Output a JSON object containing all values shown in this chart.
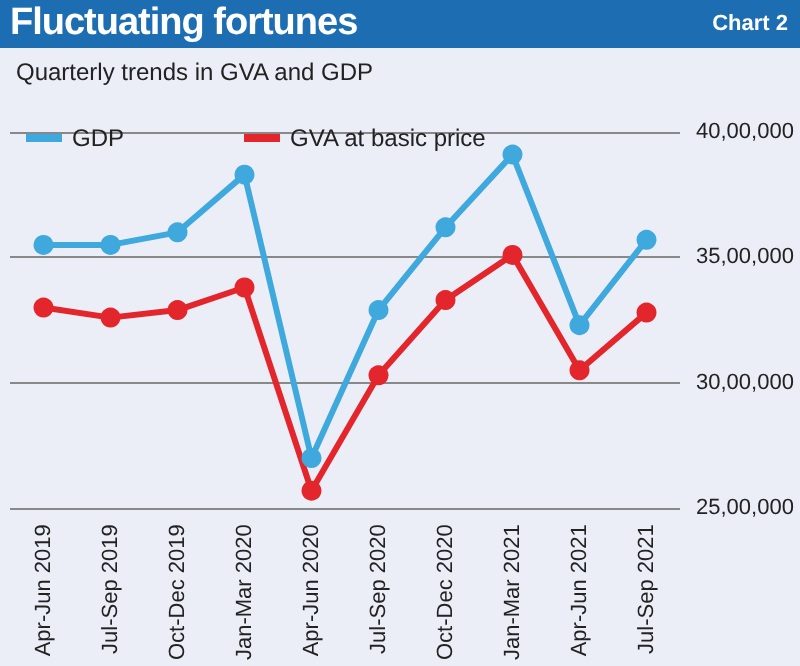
{
  "chart_data": {
    "type": "line",
    "title": "Fluctuating fortunes",
    "subtitle": "Quarterly trends in GVA and GDP",
    "annotations": [
      "Chart 2"
    ],
    "categories": [
      "Apr-Jun 2019",
      "Jul-Sep 2019",
      "Oct-Dec 2019",
      "Jan-Mar 2020",
      "Apr-Jun 2020",
      "Jul-Sep 2020",
      "Oct-Dec 2020",
      "Jan-Mar 2021",
      "Apr-Jun 2021",
      "Jul-Sep 2021"
    ],
    "series": [
      {
        "name": "GDP",
        "color": "#3fa9dd",
        "values": [
          3550000,
          3550000,
          3600000,
          3830000,
          2700000,
          3290000,
          3620000,
          3910000,
          3230000,
          3570000
        ]
      },
      {
        "name": "GVA at basic price",
        "color": "#e3262b",
        "values": [
          3300000,
          3260000,
          3290000,
          3380000,
          2570000,
          3030000,
          3330000,
          3510000,
          3050000,
          3280000
        ]
      }
    ],
    "ylim": [
      2500000,
      4000000
    ],
    "yticks": [
      {
        "value": 2500000,
        "label": "25,00,000"
      },
      {
        "value": 3000000,
        "label": "30,00,000"
      },
      {
        "value": 3500000,
        "label": "35,00,000"
      },
      {
        "value": 4000000,
        "label": "40,00,000"
      }
    ],
    "grid": "y",
    "legend": "top left",
    "marker": "circle",
    "line_style": "solid"
  }
}
